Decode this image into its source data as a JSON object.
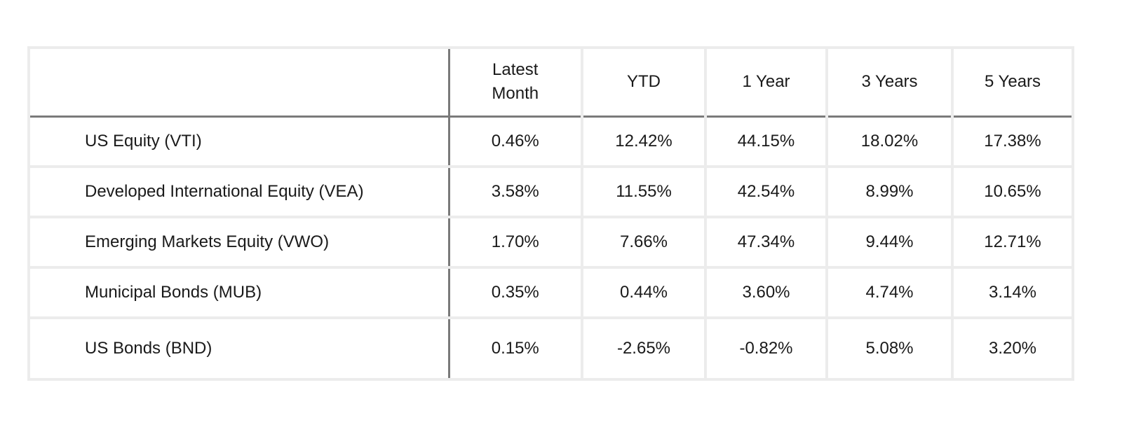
{
  "table": {
    "columns": [
      "",
      "Latest Month",
      "YTD",
      "1 Year",
      "3 Years",
      "5 Years"
    ],
    "rows": [
      {
        "name": "US Equity (VTI)",
        "values": [
          "0.46%",
          "12.42%",
          "44.15%",
          "18.02%",
          "17.38%"
        ]
      },
      {
        "name": "Developed International Equity (VEA)",
        "values": [
          "3.58%",
          "11.55%",
          "42.54%",
          "8.99%",
          "10.65%"
        ]
      },
      {
        "name": "Emerging Markets Equity (VWO)",
        "values": [
          "1.70%",
          "7.66%",
          "47.34%",
          "9.44%",
          "12.71%"
        ]
      },
      {
        "name": "Municipal Bonds (MUB)",
        "values": [
          "0.35%",
          "0.44%",
          "3.60%",
          "4.74%",
          "3.14%"
        ]
      },
      {
        "name": "US Bonds (BND)",
        "values": [
          "0.15%",
          "-2.65%",
          "-0.82%",
          "5.08%",
          "3.20%"
        ]
      }
    ]
  },
  "colors": {
    "grid_line": "#ececec",
    "divider_line": "#7a7a7a",
    "text": "#1a1a1a"
  }
}
